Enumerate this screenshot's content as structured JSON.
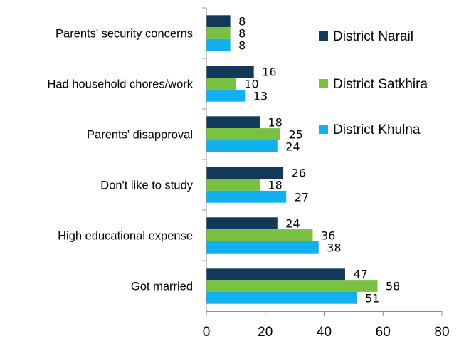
{
  "chart_data": {
    "type": "bar",
    "orientation": "horizontal",
    "categories": [
      "Parents' security concerns",
      "Had household chores/work",
      "Parents' disapproval",
      "Don't like to study",
      "High educational expense",
      "Got married"
    ],
    "series": [
      {
        "name": "District Narail",
        "color": "#12395a",
        "values": [
          8,
          16,
          18,
          26,
          24,
          47
        ]
      },
      {
        "name": "District Satkhira",
        "color": "#7ac143",
        "values": [
          8,
          10,
          25,
          18,
          36,
          58
        ]
      },
      {
        "name": "District Khulna",
        "color": "#11b1ef",
        "values": [
          8,
          13,
          24,
          27,
          38,
          51
        ]
      }
    ],
    "xlim": [
      0,
      80
    ],
    "xticks": [
      0,
      20,
      40,
      60,
      80
    ],
    "title": "",
    "xlabel": "",
    "ylabel": "",
    "legend_position": "right",
    "grid": false
  }
}
